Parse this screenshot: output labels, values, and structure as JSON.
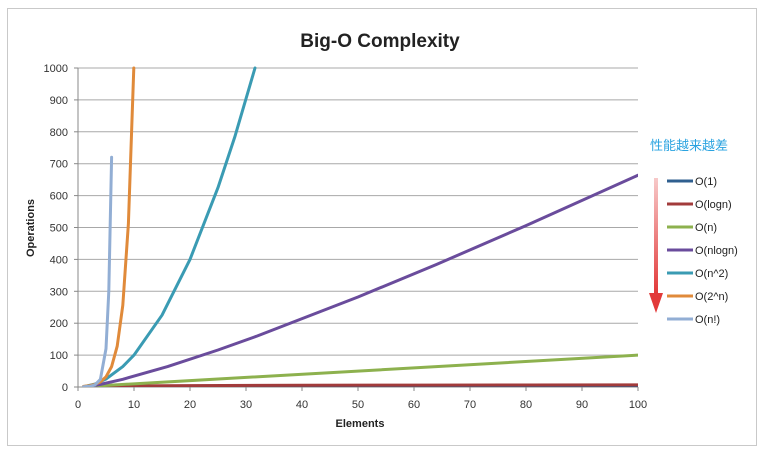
{
  "chart_data": {
    "type": "line",
    "title": "Big-O Complexity",
    "xlabel": "Elements",
    "ylabel": "Operations",
    "xlim": [
      0,
      100
    ],
    "ylim": [
      0,
      1000
    ],
    "xticks": [
      0,
      10,
      20,
      30,
      40,
      50,
      60,
      70,
      80,
      90,
      100
    ],
    "yticks": [
      0,
      100,
      200,
      300,
      400,
      500,
      600,
      700,
      800,
      900,
      1000
    ],
    "grid": "horizontal",
    "legend": "right",
    "annotation": "性能越来越差",
    "series": [
      {
        "name": "O(1)",
        "color": "#2f5f8f",
        "x": [
          1,
          100
        ],
        "y": [
          1,
          1
        ]
      },
      {
        "name": "O(logn)",
        "color": "#a23b3b",
        "x": [
          1,
          2,
          5,
          10,
          20,
          40,
          60,
          80,
          100
        ],
        "y": [
          0,
          1,
          2.3,
          3.3,
          4.3,
          5.3,
          5.9,
          6.3,
          6.6
        ]
      },
      {
        "name": "O(n)",
        "color": "#8db14e",
        "x": [
          1,
          100
        ],
        "y": [
          1,
          100
        ]
      },
      {
        "name": "O(nlogn)",
        "color": "#6a4c9c",
        "x": [
          1,
          2,
          4,
          8,
          16,
          25,
          32,
          50,
          64,
          80,
          100
        ],
        "y": [
          0,
          2,
          8,
          24,
          64,
          116,
          160,
          282,
          384,
          506,
          664
        ]
      },
      {
        "name": "O(n^2)",
        "color": "#3a9bb3",
        "x": [
          1,
          3,
          5,
          8,
          10,
          15,
          20,
          25,
          28,
          31.6
        ],
        "y": [
          1,
          9,
          25,
          64,
          100,
          225,
          400,
          625,
          784,
          1000
        ]
      },
      {
        "name": "O(2^n)",
        "color": "#e08a3a",
        "x": [
          1,
          2,
          3,
          4,
          5,
          6,
          7,
          8,
          9,
          9.97
        ],
        "y": [
          2,
          4,
          8,
          16,
          32,
          64,
          128,
          256,
          512,
          1000
        ]
      },
      {
        "name": "O(n!)",
        "color": "#92aed4",
        "x": [
          1,
          2,
          3,
          4,
          5,
          5.5,
          6.0
        ],
        "y": [
          1,
          2,
          6,
          24,
          120,
          300,
          720
        ]
      }
    ]
  }
}
